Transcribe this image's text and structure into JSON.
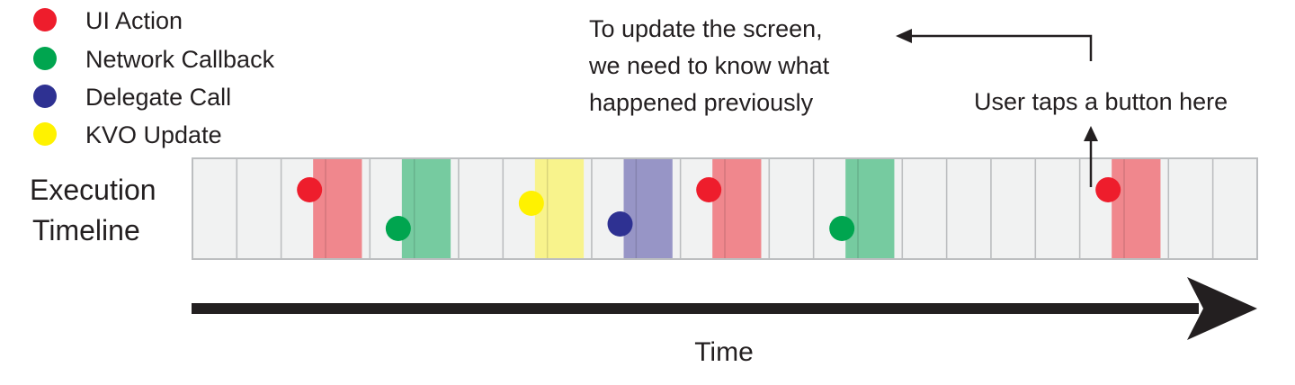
{
  "legend": {
    "items": [
      {
        "label": "UI Action",
        "color": "#ee1d2c"
      },
      {
        "label": "Network Callback",
        "color": "#00a54f"
      },
      {
        "label": "Delegate Call",
        "color": "#2e3192"
      },
      {
        "label": "KVO Update",
        "color": "#fff200"
      }
    ]
  },
  "timeline": {
    "label_line1": "Execution",
    "label_line2": "Timeline",
    "cell_count": 24,
    "events": [
      {
        "type": "UI Action",
        "cell": 2
      },
      {
        "type": "Network Callback",
        "cell": 4
      },
      {
        "type": "KVO Update",
        "cell": 7
      },
      {
        "type": "Delegate Call",
        "cell": 9
      },
      {
        "type": "UI Action",
        "cell": 11
      },
      {
        "type": "Network Callback",
        "cell": 14
      },
      {
        "type": "UI Action",
        "cell": 20
      }
    ]
  },
  "annotations": {
    "update_line1": "To update the screen,",
    "update_line2": "we need to know what",
    "update_line3": "happened previously",
    "tap_text": "User taps a button here"
  },
  "axis": {
    "label": "Time"
  },
  "colors": {
    "cell_fill": "#f1f2f2",
    "cell_stroke": "#bcbec0",
    "ui_band": "#f0878d",
    "network_band": "#76cba0",
    "delegate_band": "#9795c6",
    "kvo_band": "#f8f38c",
    "text": "#231f20"
  }
}
